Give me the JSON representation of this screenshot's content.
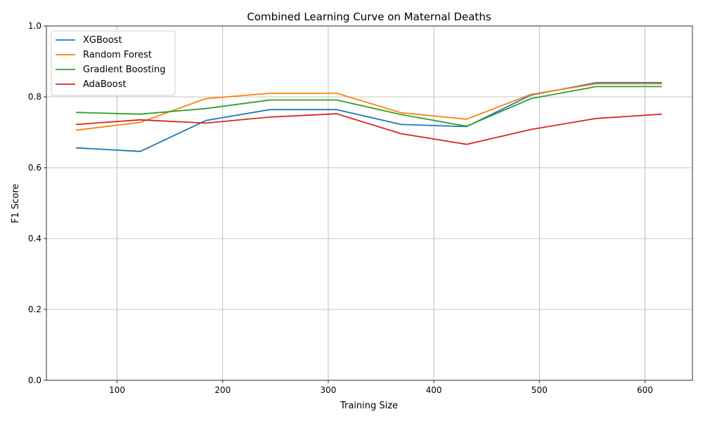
{
  "chart_data": {
    "type": "line",
    "title": "Combined Learning Curve on Maternal Deaths",
    "xlabel": "Training Size",
    "ylabel": "F1 Score",
    "xlim": [
      33,
      645
    ],
    "ylim": [
      0,
      1
    ],
    "xticks": [
      100,
      200,
      300,
      400,
      500,
      600
    ],
    "yticks": [
      0.0,
      0.2,
      0.4,
      0.6,
      0.8,
      1.0
    ],
    "grid": true,
    "legend_position": "top-left",
    "x": [
      61,
      122,
      184,
      245,
      308,
      369,
      431,
      492,
      554,
      616
    ],
    "series": [
      {
        "name": "XGBoost",
        "color": "#1f77b4",
        "values": [
          0.656,
          0.646,
          0.733,
          0.764,
          0.764,
          0.722,
          0.716,
          0.805,
          0.84,
          0.84
        ]
      },
      {
        "name": "Random Forest",
        "color": "#ff7f0e",
        "values": [
          0.706,
          0.728,
          0.795,
          0.81,
          0.81,
          0.755,
          0.737,
          0.807,
          0.837,
          0.837
        ]
      },
      {
        "name": "Gradient Boosting",
        "color": "#2ca02c",
        "values": [
          0.756,
          0.751,
          0.767,
          0.791,
          0.791,
          0.75,
          0.717,
          0.795,
          0.829,
          0.829
        ]
      },
      {
        "name": "AdaBoost",
        "color": "#d62728",
        "values": [
          0.722,
          0.735,
          0.726,
          0.743,
          0.752,
          0.696,
          0.666,
          0.708,
          0.739,
          0.751
        ]
      }
    ]
  }
}
